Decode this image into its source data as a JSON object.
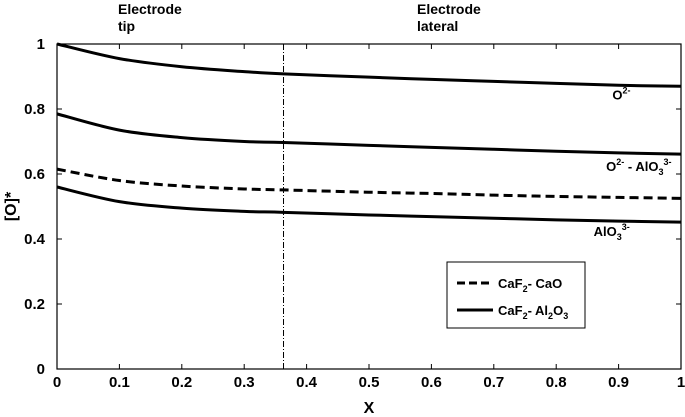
{
  "chart_data": {
    "type": "line",
    "xlabel": "X",
    "ylabel": "[O]*",
    "xlim": [
      0,
      1
    ],
    "ylim": [
      0,
      1
    ],
    "xticks": [
      "0",
      "0.1",
      "0.2",
      "0.3",
      "0.4",
      "0.5",
      "0.6",
      "0.7",
      "0.8",
      "0.9",
      "1"
    ],
    "yticks": [
      "0",
      "0.2",
      "0.4",
      "0.6",
      "0.8",
      "1"
    ],
    "grid": false,
    "vline_x": 0.363,
    "regions": [
      {
        "line1": "Electrode",
        "line2": "tip"
      },
      {
        "line1": "Electrode",
        "line2": "lateral"
      }
    ],
    "series": [
      {
        "name": "O2-",
        "system": "CaF2- Al2O3",
        "style": "solid",
        "x": [
          0,
          0.1,
          0.2,
          0.3,
          0.363,
          0.5,
          0.6,
          0.7,
          0.8,
          0.9,
          1
        ],
        "y": [
          1.0,
          0.955,
          0.93,
          0.915,
          0.908,
          0.898,
          0.891,
          0.885,
          0.879,
          0.873,
          0.87
        ]
      },
      {
        "name": "O2- - AlO33-",
        "system": "CaF2- Al2O3",
        "style": "solid",
        "x": [
          0,
          0.1,
          0.2,
          0.3,
          0.363,
          0.5,
          0.6,
          0.7,
          0.8,
          0.9,
          1
        ],
        "y": [
          0.785,
          0.735,
          0.712,
          0.7,
          0.697,
          0.688,
          0.682,
          0.676,
          0.67,
          0.665,
          0.661
        ]
      },
      {
        "name": "",
        "system": "CaF2- CaO",
        "style": "dashed",
        "x": [
          0,
          0.1,
          0.2,
          0.3,
          0.363,
          0.5,
          0.6,
          0.7,
          0.8,
          0.9,
          1
        ],
        "y": [
          0.615,
          0.58,
          0.563,
          0.554,
          0.551,
          0.544,
          0.54,
          0.535,
          0.531,
          0.528,
          0.525
        ]
      },
      {
        "name": "AlO33-",
        "system": "CaF2- Al2O3",
        "style": "solid",
        "x": [
          0,
          0.1,
          0.2,
          0.3,
          0.363,
          0.5,
          0.6,
          0.7,
          0.8,
          0.9,
          1
        ],
        "y": [
          0.56,
          0.515,
          0.495,
          0.485,
          0.482,
          0.474,
          0.469,
          0.464,
          0.459,
          0.455,
          0.452
        ]
      }
    ],
    "annotations": [
      {
        "base": "O",
        "sup": "2-",
        "rest": "",
        "rest_sup": "",
        "at": [
          0.89,
          0.83
        ]
      },
      {
        "base": "O",
        "sup": "2-",
        "rest": " - AlO",
        "rest_sub": "3",
        "rest_sup": "3-",
        "at": [
          0.88,
          0.61
        ]
      },
      {
        "base": "AlO",
        "sub": "3",
        "sup": "3-",
        "rest": "",
        "rest_sup": "",
        "at": [
          0.86,
          0.41
        ]
      }
    ],
    "legend": {
      "placement": "lower-right",
      "entries": [
        {
          "style": "dashed",
          "parts": [
            {
              "t": "CaF"
            },
            {
              "t": "2",
              "sub": true
            },
            {
              "t": "- CaO"
            }
          ]
        },
        {
          "style": "solid",
          "parts": [
            {
              "t": "CaF"
            },
            {
              "t": "2",
              "sub": true
            },
            {
              "t": "- Al"
            },
            {
              "t": "2",
              "sub": true
            },
            {
              "t": "O"
            },
            {
              "t": "3",
              "sub": true
            }
          ]
        }
      ]
    }
  }
}
